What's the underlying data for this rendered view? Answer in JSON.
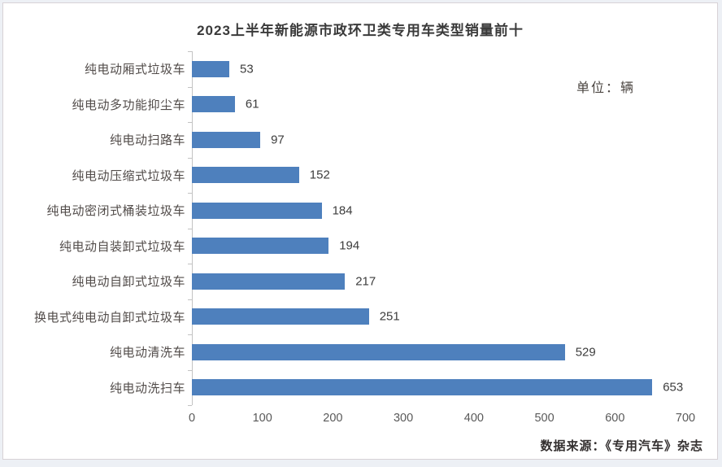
{
  "chart_data": {
    "type": "bar",
    "orientation": "horizontal",
    "title": "2023上半年新能源市政环卫类专用车类型销量前十",
    "unit_label": "单位：辆",
    "source_label": "数据来源：《专用汽车》杂志",
    "categories": [
      "纯电动厢式垃圾车",
      "纯电动多功能抑尘车",
      "纯电动扫路车",
      "纯电动压缩式垃圾车",
      "纯电动密闭式桶装垃圾车",
      "纯电动自装卸式垃圾车",
      "纯电动自卸式垃圾车",
      "换电式纯电动自卸式垃圾车",
      "纯电动清洗车",
      "纯电动洗扫车"
    ],
    "values": [
      53,
      61,
      97,
      152,
      184,
      194,
      217,
      251,
      529,
      653
    ],
    "x_ticks": [
      0,
      100,
      200,
      300,
      400,
      500,
      600,
      700
    ],
    "xlim": [
      0,
      700
    ],
    "bar_color": "#4E80BD",
    "grid": false,
    "legend": "none",
    "value_labels": "outside-end"
  }
}
